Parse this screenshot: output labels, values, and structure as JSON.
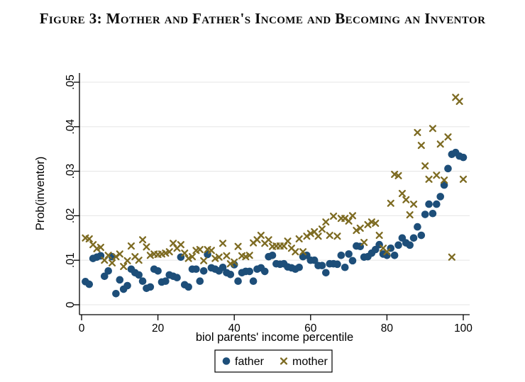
{
  "title": "Figure 3: Mother and Father's Income and Becoming an Inventor",
  "colors": {
    "father": "#1d4e79",
    "mother": "#7d6b22",
    "gridline": "#e9e9e9",
    "axis": "#000000",
    "background": "#ffffff",
    "legend_border": "#000000"
  },
  "legend": {
    "items": [
      {
        "label": "father",
        "marker": "circle"
      },
      {
        "label": "mother",
        "marker": "x"
      }
    ]
  },
  "chart_data": {
    "type": "scatter",
    "title": "",
    "xlabel": "biol parents' income percentile",
    "ylabel": "Prob(inventor)",
    "xlim": [
      0,
      100
    ],
    "ylim": [
      0,
      0.05
    ],
    "x_ticks": [
      0,
      20,
      40,
      60,
      80,
      100
    ],
    "x_tick_labels": [
      "0",
      "20",
      "40",
      "60",
      "80",
      "100"
    ],
    "y_ticks": [
      0,
      0.01,
      0.02,
      0.03,
      0.04,
      0.05
    ],
    "y_tick_labels": [
      "0",
      ".01",
      ".02",
      ".03",
      ".04",
      ".05"
    ],
    "grid": "horizontal",
    "legend_position": "bottom-center",
    "series": [
      {
        "name": "father",
        "marker": "circle",
        "color": "#1d4e79",
        "x": [
          1,
          2,
          3,
          4,
          5,
          6,
          7,
          8,
          9,
          10,
          11,
          12,
          13,
          14,
          15,
          16,
          17,
          18,
          19,
          20,
          21,
          22,
          23,
          24,
          25,
          26,
          27,
          28,
          29,
          30,
          31,
          32,
          33,
          34,
          35,
          36,
          37,
          38,
          39,
          40,
          41,
          42,
          43,
          44,
          45,
          46,
          47,
          48,
          49,
          50,
          51,
          52,
          53,
          54,
          55,
          56,
          57,
          58,
          59,
          60,
          61,
          62,
          63,
          64,
          65,
          66,
          67,
          68,
          69,
          70,
          71,
          72,
          73,
          74,
          75,
          76,
          77,
          78,
          79,
          80,
          81,
          82,
          83,
          84,
          85,
          86,
          87,
          88,
          89,
          90,
          91,
          92,
          93,
          94,
          95,
          96,
          97,
          98,
          99,
          100
        ],
        "y": [
          0.0052,
          0.0046,
          0.0104,
          0.0107,
          0.011,
          0.0064,
          0.0076,
          0.0108,
          0.0025,
          0.0056,
          0.0035,
          0.0043,
          0.008,
          0.0072,
          0.0067,
          0.0053,
          0.0037,
          0.004,
          0.008,
          0.0076,
          0.0051,
          0.0053,
          0.0067,
          0.0064,
          0.0061,
          0.0107,
          0.0045,
          0.004,
          0.008,
          0.008,
          0.0053,
          0.0076,
          0.0113,
          0.0083,
          0.008,
          0.0076,
          0.0084,
          0.0072,
          0.0068,
          0.009,
          0.0053,
          0.0072,
          0.0075,
          0.0075,
          0.0053,
          0.008,
          0.0083,
          0.0075,
          0.0108,
          0.0111,
          0.0092,
          0.0091,
          0.0092,
          0.0085,
          0.0083,
          0.008,
          0.0084,
          0.0108,
          0.0111,
          0.01,
          0.01,
          0.0088,
          0.0088,
          0.0072,
          0.0092,
          0.0092,
          0.0091,
          0.0111,
          0.0084,
          0.0114,
          0.0099,
          0.0132,
          0.0131,
          0.0107,
          0.0108,
          0.0116,
          0.0124,
          0.0135,
          0.0114,
          0.0111,
          0.0127,
          0.0111,
          0.0134,
          0.015,
          0.0139,
          0.0134,
          0.015,
          0.0175,
          0.0156,
          0.0203,
          0.0226,
          0.0205,
          0.0226,
          0.0243,
          0.0269,
          0.0306,
          0.0338,
          0.0342,
          0.0334,
          0.0331
        ]
      },
      {
        "name": "mother",
        "marker": "x",
        "color": "#7d6b22",
        "x": [
          1,
          2,
          3,
          4,
          5,
          6,
          7,
          8,
          9,
          10,
          11,
          12,
          13,
          14,
          15,
          16,
          17,
          18,
          19,
          20,
          21,
          22,
          23,
          24,
          25,
          26,
          27,
          28,
          29,
          30,
          31,
          32,
          33,
          34,
          35,
          36,
          37,
          38,
          39,
          40,
          41,
          42,
          43,
          44,
          45,
          46,
          47,
          48,
          49,
          50,
          51,
          52,
          53,
          54,
          55,
          56,
          57,
          58,
          59,
          60,
          61,
          62,
          63,
          64,
          65,
          66,
          67,
          68,
          69,
          70,
          71,
          72,
          73,
          74,
          75,
          76,
          77,
          78,
          79,
          80,
          81,
          82,
          83,
          84,
          85,
          86,
          87,
          88,
          89,
          90,
          91,
          92,
          93,
          94,
          95,
          96,
          97,
          98,
          99,
          100
        ],
        "y": [
          0.015,
          0.0148,
          0.0135,
          0.0126,
          0.0129,
          0.01,
          0.0111,
          0.0094,
          0.0108,
          0.0114,
          0.0086,
          0.0099,
          0.0132,
          0.0108,
          0.01,
          0.0146,
          0.013,
          0.0111,
          0.0114,
          0.0113,
          0.0114,
          0.0116,
          0.0119,
          0.0138,
          0.0127,
          0.0135,
          0.0116,
          0.0104,
          0.0108,
          0.0122,
          0.0124,
          0.0099,
          0.0124,
          0.0122,
          0.0104,
          0.0107,
          0.0138,
          0.011,
          0.0092,
          0.0096,
          0.0131,
          0.011,
          0.0108,
          0.0111,
          0.0139,
          0.0146,
          0.0156,
          0.0138,
          0.0146,
          0.0131,
          0.0132,
          0.0132,
          0.0132,
          0.0143,
          0.0127,
          0.0119,
          0.0148,
          0.0119,
          0.0154,
          0.016,
          0.0164,
          0.0154,
          0.017,
          0.0186,
          0.0156,
          0.0199,
          0.0154,
          0.0194,
          0.0194,
          0.0188,
          0.02,
          0.0167,
          0.0172,
          0.014,
          0.018,
          0.0186,
          0.0183,
          0.0156,
          0.0127,
          0.0119,
          0.0228,
          0.0293,
          0.029,
          0.025,
          0.0236,
          0.0202,
          0.0226,
          0.0387,
          0.0358,
          0.0312,
          0.0282,
          0.0396,
          0.0291,
          0.0361,
          0.028,
          0.0377,
          0.0107,
          0.0466,
          0.0457,
          0.0282
        ]
      }
    ]
  }
}
